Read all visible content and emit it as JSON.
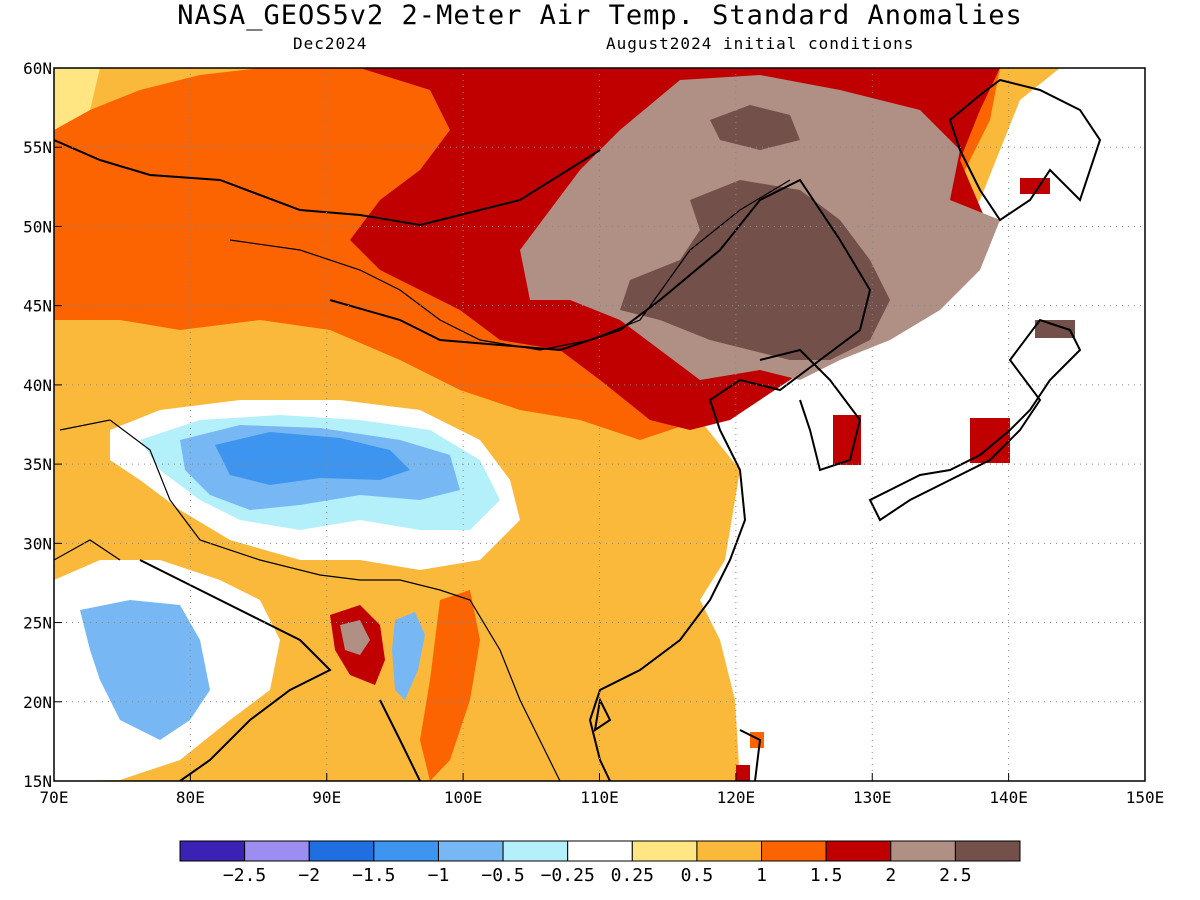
{
  "title": "NASA_GEOS5v2 2-Meter Air Temp. Standard Anomalies",
  "subtitle_left": "Dec2024",
  "subtitle_right": "August2024 initial conditions",
  "map": {
    "lon_range": [
      70,
      150
    ],
    "lat_range": [
      15,
      60
    ],
    "lon_ticks": [
      "70E",
      "80E",
      "90E",
      "100E",
      "110E",
      "120E",
      "130E",
      "140E",
      "150E"
    ],
    "lat_ticks": [
      "15N",
      "20N",
      "25N",
      "30N",
      "35N",
      "40N",
      "45N",
      "50N",
      "55N",
      "60N"
    ],
    "grid": "dotted"
  },
  "colorbar": {
    "colors": [
      "#3b22b4",
      "#9c8df0",
      "#1f6fe0",
      "#3d95ef",
      "#77b7f4",
      "#b4f0fa",
      "#ffffff",
      "#ffe682",
      "#fbb93c",
      "#fb6400",
      "#c00000",
      "#b08f85",
      "#73504a"
    ],
    "labels": [
      "-2.5",
      "-2",
      "-1.5",
      "-1",
      "-0.5",
      "-0.25",
      "0.25",
      "0.5",
      "1",
      "1.5",
      "2",
      "2.5"
    ]
  },
  "anomaly_regions": [
    {
      "name": "siberia-mongolia-warm",
      "level": "1.5",
      "color": "#fb6400"
    },
    {
      "name": "mongolia-strong-warm",
      "level": "2",
      "color": "#c00000"
    },
    {
      "name": "northeast-china-very-warm",
      "level": "2.5",
      "color": "#b08f85"
    },
    {
      "name": "northeast-china-extreme",
      "level": ">2.5",
      "color": "#73504a"
    },
    {
      "name": "tibet-cool",
      "level": "-1",
      "color": "#3d95ef"
    },
    {
      "name": "india-cool",
      "level": "-0.5",
      "color": "#77b7f4"
    },
    {
      "name": "south-china-warm",
      "level": "1",
      "color": "#fbb93c"
    }
  ]
}
